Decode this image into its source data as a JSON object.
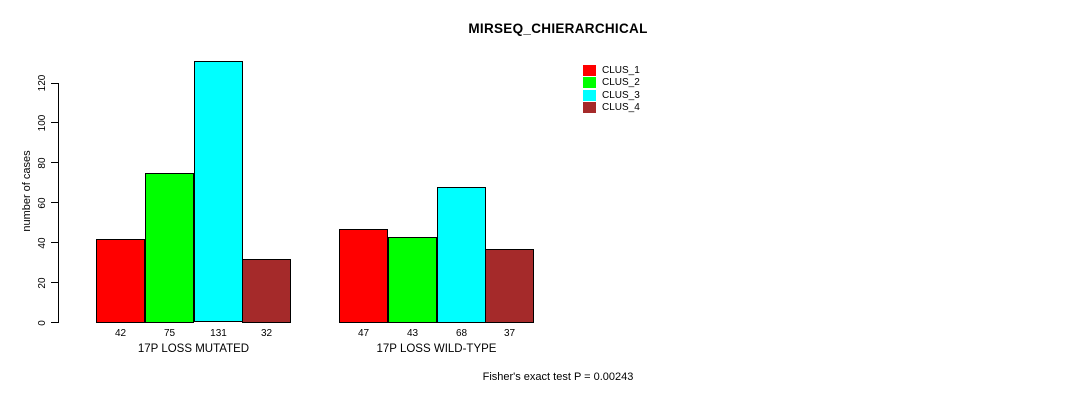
{
  "title": "MIRSEQ_CHIERARCHICAL",
  "footnote": "Fisher's exact test P = 0.00243",
  "chart_data": {
    "type": "bar",
    "title": "MIRSEQ_CHIERARCHICAL",
    "xlabel": "",
    "ylabel": "number of cases",
    "ylim": [
      0,
      131
    ],
    "yticks": [
      0,
      20,
      40,
      60,
      80,
      100,
      120
    ],
    "grid": false,
    "legend_position": "top-right",
    "bar_value_labels": true,
    "categories": [
      "17P LOSS MUTATED",
      "17P LOSS WILD-TYPE"
    ],
    "series": [
      {
        "name": "CLUS_1",
        "color": "#ff0000",
        "values": [
          42,
          47
        ]
      },
      {
        "name": "CLUS_2",
        "color": "#00ff00",
        "values": [
          75,
          43
        ]
      },
      {
        "name": "CLUS_3",
        "color": "#00ffff",
        "values": [
          131,
          68
        ]
      },
      {
        "name": "CLUS_4",
        "color": "#a52a2a",
        "values": [
          32,
          37
        ]
      }
    ],
    "annotation": "Fisher's exact test P = 0.00243"
  }
}
